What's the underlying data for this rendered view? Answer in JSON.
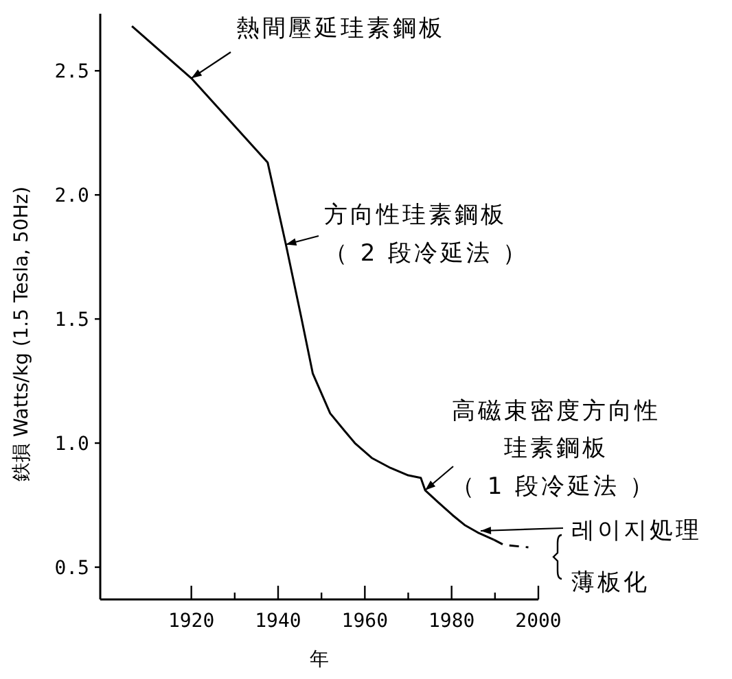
{
  "chart_data": {
    "type": "line",
    "xlabel": "年",
    "ylabel": "鉄損 Watts/kg (1.5 Tesla, 50Hz)",
    "xlim": [
      1899,
      2000
    ],
    "ylim": [
      0.37,
      2.73
    ],
    "xticks": [
      1920,
      {
        "value": 1930,
        "label": null
      },
      1940,
      {
        "value": 1950,
        "label": null
      },
      1960,
      {
        "value": 1970,
        "label": null
      },
      1980,
      {
        "value": 1990,
        "label": null
      },
      2000
    ],
    "yticks": [
      0.5,
      {
        "value": 1,
        "label": "1.0"
      },
      1.5,
      {
        "value": 2,
        "label": "2.0"
      },
      2.5
    ],
    "series": [
      {
        "color": "#000000",
        "line_style": "solid",
        "x": [
          1906.3,
          1920,
          1937.6,
          1941.8,
          1945.3,
          1948,
          1952,
          1955.3,
          1957.7,
          1961.6,
          1965.9,
          1970,
          1972.9,
          1973.9,
          1977,
          1980.2,
          1983,
          1986,
          1989.8
        ],
        "values": [
          2.68,
          2.47,
          2.13,
          1.8,
          1.51,
          1.28,
          1.12,
          1.05,
          1.0,
          0.94,
          0.9,
          0.87,
          0.86,
          0.81,
          0.76,
          0.71,
          0.67,
          0.64,
          0.61
        ]
      },
      {
        "color": "#000000",
        "line_style": "dashed",
        "x": [
          1989.8,
          1992,
          1997.7
        ],
        "values": [
          0.61,
          0.59,
          0.58
        ]
      }
    ],
    "annotations": [
      {
        "text": "熱間壓延珪素鋼板",
        "x": 1920,
        "y": 2.47
      },
      {
        "text": "方向性珪素鋼板",
        "x": 1941.8,
        "y": 1.8
      },
      "（ 2 段冷延法 ）",
      "高磁束密度方向性",
      "珪素鋼板",
      {
        "text": "（ 1 段冷延法 ）",
        "x": 1973.9,
        "y": 0.81
      },
      "레이지処理",
      "薄板化"
    ]
  }
}
